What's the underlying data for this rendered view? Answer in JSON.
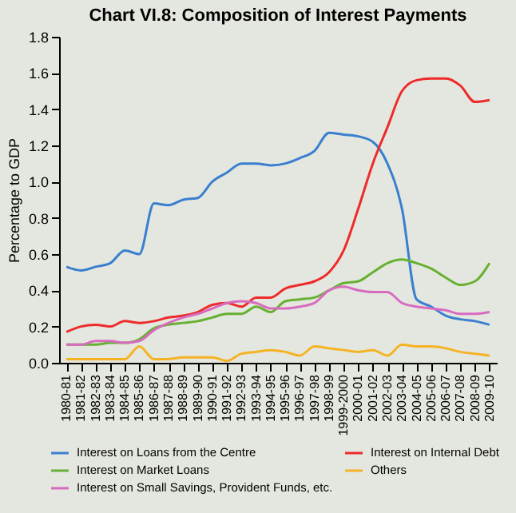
{
  "chart_data": {
    "type": "line",
    "title": "Chart VI.8: Composition of Interest Payments",
    "ylabel": "Percentage to GDP",
    "categories": [
      "1980-81",
      "1981-82",
      "1982-83",
      "1983-84",
      "1984-85",
      "1985-86",
      "1986-87",
      "1987-88",
      "1988-89",
      "1989-90",
      "1990-91",
      "1991-92",
      "1992-93",
      "1993-94",
      "1994-95",
      "1995-96",
      "1996-97",
      "1997-98",
      "1998-99",
      "1999-2000",
      "2000-01",
      "2001-02",
      "2002-03",
      "2003-04",
      "2004-05",
      "2005-06",
      "2006-07",
      "2007-08",
      "2008-09",
      "2009-10"
    ],
    "series": [
      {
        "name": "Interest on Loans from the Centre",
        "color": "#3a7fcf",
        "values": [
          0.53,
          0.51,
          0.53,
          0.55,
          0.62,
          0.6,
          0.88,
          0.87,
          0.9,
          0.91,
          1.0,
          1.05,
          1.1,
          1.1,
          1.09,
          1.1,
          1.13,
          1.17,
          1.27,
          1.26,
          1.25,
          1.22,
          1.1,
          0.85,
          0.35,
          0.31,
          0.26,
          0.24,
          0.23,
          0.21
        ]
      },
      {
        "name": "Interest on Internal Debt",
        "color": "#ee2a2a",
        "values": [
          0.17,
          0.2,
          0.21,
          0.2,
          0.23,
          0.22,
          0.23,
          0.25,
          0.26,
          0.28,
          0.32,
          0.33,
          0.31,
          0.36,
          0.36,
          0.41,
          0.43,
          0.45,
          0.5,
          0.62,
          0.85,
          1.1,
          1.3,
          1.5,
          1.56,
          1.57,
          1.57,
          1.53,
          1.44,
          1.45
        ]
      },
      {
        "name": "Interest on Market Loans",
        "color": "#66b032",
        "values": [
          0.1,
          0.1,
          0.1,
          0.11,
          0.11,
          0.13,
          0.19,
          0.21,
          0.22,
          0.23,
          0.25,
          0.27,
          0.27,
          0.31,
          0.28,
          0.34,
          0.35,
          0.36,
          0.4,
          0.44,
          0.45,
          0.5,
          0.55,
          0.57,
          0.55,
          0.52,
          0.47,
          0.43,
          0.45,
          0.55
        ]
      },
      {
        "name": "Others",
        "color": "#f5b324",
        "values": [
          0.02,
          0.02,
          0.02,
          0.02,
          0.02,
          0.09,
          0.02,
          0.02,
          0.03,
          0.03,
          0.03,
          0.01,
          0.05,
          0.06,
          0.07,
          0.06,
          0.04,
          0.09,
          0.08,
          0.07,
          0.06,
          0.07,
          0.04,
          0.1,
          0.09,
          0.09,
          0.08,
          0.06,
          0.05,
          0.04
        ]
      },
      {
        "name": "Interest on Small Savings, Provident Funds, etc.",
        "color": "#d86bc0",
        "values": [
          0.1,
          0.1,
          0.12,
          0.12,
          0.11,
          0.12,
          0.18,
          0.22,
          0.25,
          0.27,
          0.3,
          0.33,
          0.34,
          0.33,
          0.3,
          0.3,
          0.31,
          0.33,
          0.4,
          0.42,
          0.4,
          0.39,
          0.39,
          0.33,
          0.31,
          0.3,
          0.29,
          0.27,
          0.27,
          0.28
        ]
      }
    ],
    "ylim": [
      0,
      1.8
    ],
    "yticks": [
      {
        "value": 0,
        "label": "0.0"
      },
      {
        "value": 0.2,
        "label": "0.2"
      },
      {
        "value": 0.4,
        "label": "0.4"
      },
      {
        "value": 0.6,
        "label": "0.6"
      },
      {
        "value": 0.8,
        "label": "0.8"
      },
      {
        "value": 1,
        "label": "1.0"
      },
      {
        "value": 1.2,
        "label": "1.2"
      },
      {
        "value": 1.4,
        "label": "1.4"
      },
      {
        "value": 1.6,
        "label": "1.6"
      },
      {
        "value": 1.8,
        "label": "1.8"
      }
    ],
    "grid": false,
    "legend": "bottom",
    "marker": "none",
    "line_style": "solid"
  }
}
